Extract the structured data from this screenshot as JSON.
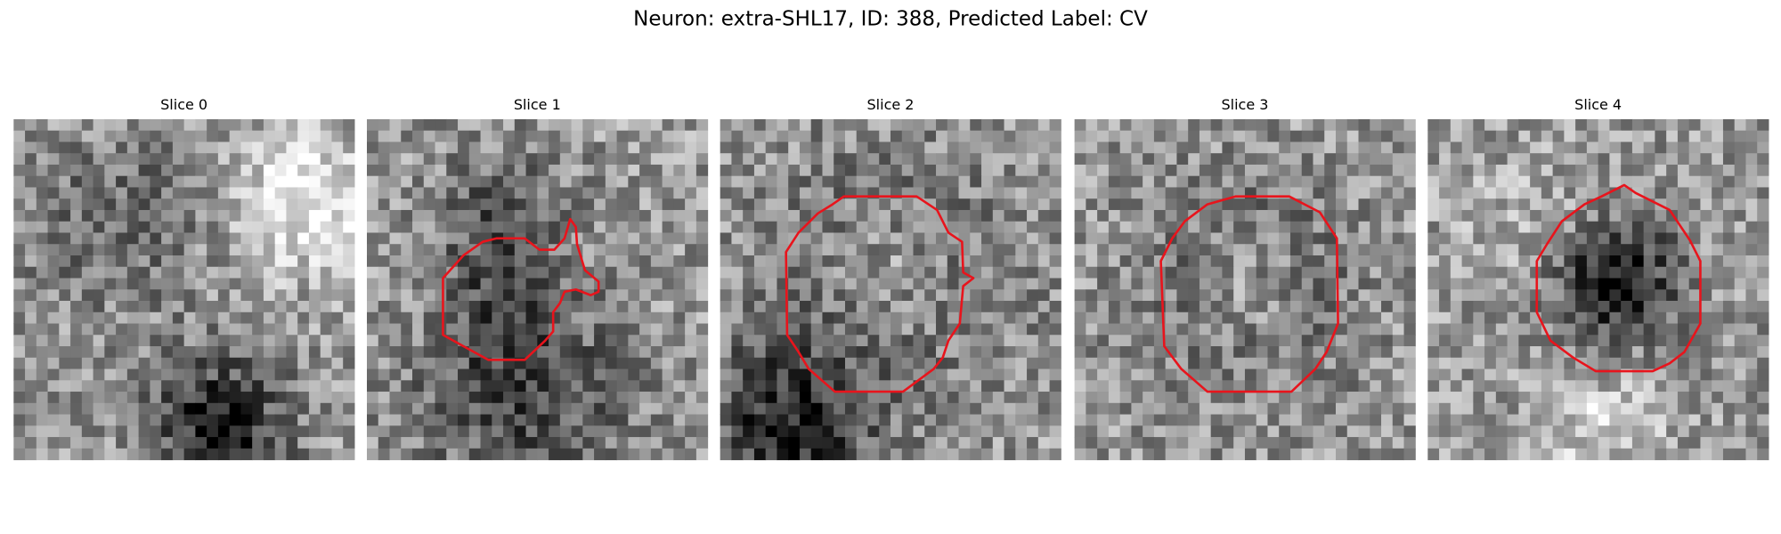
{
  "title": "Neuron: extra-SHL17, ID: 388, Predicted Label: CV",
  "panels": [
    {
      "label": "Slice 0"
    },
    {
      "label": "Slice 1"
    },
    {
      "label": "Slice 2"
    },
    {
      "label": "Slice 3"
    },
    {
      "label": "Slice 4"
    }
  ]
}
